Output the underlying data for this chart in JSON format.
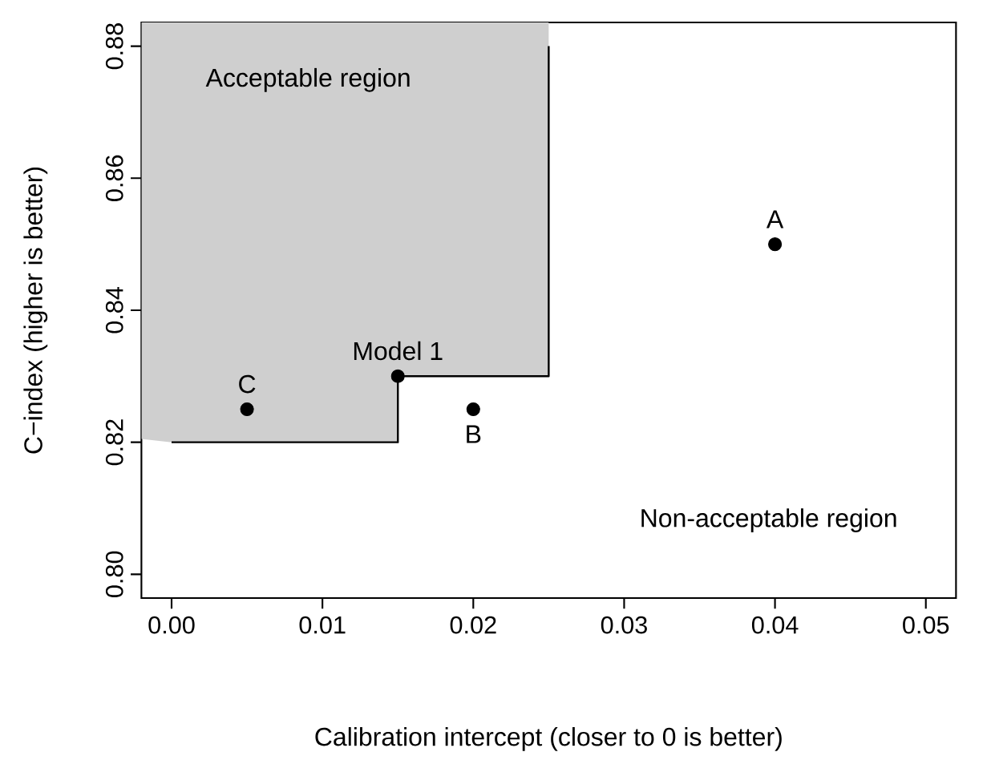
{
  "chart_data": {
    "type": "scatter",
    "xlabel": "Calibration intercept (closer to 0 is better)",
    "ylabel": "C−index (higher is better)",
    "xlim": [
      -0.002,
      0.052
    ],
    "ylim": [
      0.7964,
      0.8836
    ],
    "xticks": [
      {
        "value": 0,
        "label": "0.00"
      },
      {
        "value": 0.01,
        "label": "0.01"
      },
      {
        "value": 0.02,
        "label": "0.02"
      },
      {
        "value": 0.03,
        "label": "0.03"
      },
      {
        "value": 0.04,
        "label": "0.04"
      },
      {
        "value": 0.05,
        "label": "0.05"
      }
    ],
    "yticks": [
      {
        "value": 0.8,
        "label": "0.80"
      },
      {
        "value": 0.82,
        "label": "0.82"
      },
      {
        "value": 0.84,
        "label": "0.84"
      },
      {
        "value": 0.86,
        "label": "0.86"
      },
      {
        "value": 0.88,
        "label": "0.88"
      }
    ],
    "grid": false,
    "series": [
      {
        "type": "line",
        "marker": "none",
        "color": "#000000",
        "x": [
          -0.002,
          0,
          0.015,
          0.015,
          0.025,
          0.025
        ],
        "values": [
          null,
          0.82,
          0.82,
          0.83,
          0.83,
          0.88
        ],
        "lower": [
          0.8205,
          0.82,
          0.82,
          0.83,
          0.83,
          0.8836
        ],
        "upper": [
          0.8836,
          0.8836,
          0.8836,
          0.8836,
          0.8836,
          0.8836
        ]
      },
      {
        "marker": "circle",
        "color": "#000000",
        "x": [
          0.005,
          0.015,
          0.02,
          0.04
        ],
        "values": [
          0.825,
          0.83,
          0.825,
          0.85
        ]
      }
    ],
    "annotations": [
      {
        "text": "C",
        "x": 0.005,
        "y": 0.825
      },
      {
        "text": "Model 1",
        "x": 0.015,
        "y": 0.83
      },
      {
        "text": "B",
        "x": 0.02,
        "y": 0.825
      },
      {
        "text": "A",
        "x": 0.04,
        "y": 0.85
      },
      "Acceptable region",
      "Non-acceptable region"
    ]
  }
}
